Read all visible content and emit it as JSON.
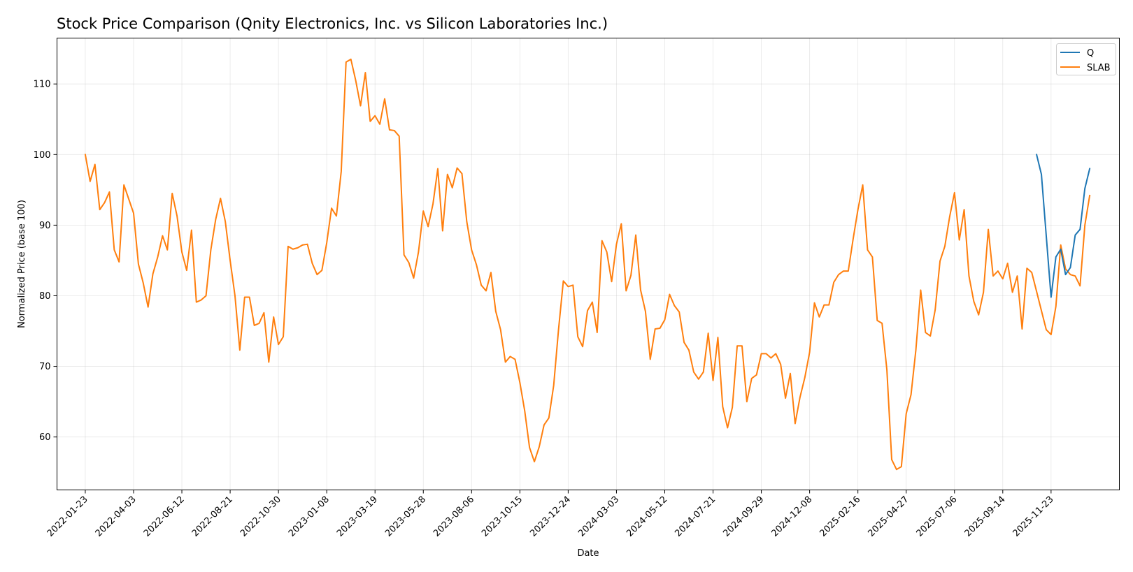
{
  "chart_data": {
    "type": "line",
    "title": "Stock Price Comparison (Qnity Electronics, Inc. vs Silicon Laboratories Inc.)",
    "xlabel": "Date",
    "ylabel": "Normalized Price (base 100)",
    "xlim": [
      "2021-12-13",
      "2026-03-02"
    ],
    "ylim": [
      52.5,
      116.5
    ],
    "yticks": [
      60,
      70,
      80,
      90,
      100,
      110
    ],
    "xticks": [
      "2022-01-23",
      "2022-04-03",
      "2022-06-12",
      "2022-08-21",
      "2022-10-30",
      "2023-01-08",
      "2023-03-19",
      "2023-05-28",
      "2023-08-06",
      "2023-10-15",
      "2023-12-24",
      "2024-03-03",
      "2024-05-12",
      "2024-07-21",
      "2024-09-29",
      "2024-12-08",
      "2025-02-16",
      "2025-04-27",
      "2025-07-06",
      "2025-09-14",
      "2025-11-23"
    ],
    "grid": true,
    "legend_position": "top-right",
    "series": [
      {
        "name": "Q",
        "color": "#1f77b4",
        "points": [
          [
            "2025-11-02",
            100.0
          ],
          [
            "2025-11-09",
            97.2
          ],
          [
            "2025-11-16",
            88.5
          ],
          [
            "2025-11-23",
            79.8
          ],
          [
            "2025-11-30",
            85.5
          ],
          [
            "2025-12-07",
            86.6
          ],
          [
            "2025-12-14",
            83.0
          ],
          [
            "2025-12-21",
            84.0
          ],
          [
            "2025-12-28",
            88.6
          ],
          [
            "2026-01-04",
            89.4
          ],
          [
            "2026-01-11",
            95.2
          ],
          [
            "2026-01-18",
            98.0
          ]
        ]
      },
      {
        "name": "SLAB",
        "color": "#ff7f0e",
        "points": [
          [
            "2022-01-23",
            100.0
          ],
          [
            "2022-01-30",
            96.2
          ],
          [
            "2022-02-06",
            98.6
          ],
          [
            "2022-02-13",
            92.2
          ],
          [
            "2022-02-20",
            93.2
          ],
          [
            "2022-02-27",
            94.7
          ],
          [
            "2022-03-06",
            86.5
          ],
          [
            "2022-03-13",
            84.8
          ],
          [
            "2022-03-20",
            95.7
          ],
          [
            "2022-03-27",
            93.7
          ],
          [
            "2022-04-03",
            91.7
          ],
          [
            "2022-04-10",
            84.5
          ],
          [
            "2022-04-17",
            81.8
          ],
          [
            "2022-04-24",
            78.4
          ],
          [
            "2022-05-01",
            83.1
          ],
          [
            "2022-05-08",
            85.5
          ],
          [
            "2022-05-15",
            88.5
          ],
          [
            "2022-05-22",
            86.5
          ],
          [
            "2022-05-29",
            94.5
          ],
          [
            "2022-06-05",
            91.3
          ],
          [
            "2022-06-12",
            86.2
          ],
          [
            "2022-06-19",
            83.6
          ],
          [
            "2022-06-26",
            89.3
          ],
          [
            "2022-07-03",
            79.1
          ],
          [
            "2022-07-10",
            79.4
          ],
          [
            "2022-07-17",
            80.0
          ],
          [
            "2022-07-24",
            86.5
          ],
          [
            "2022-07-31",
            90.8
          ],
          [
            "2022-08-07",
            93.8
          ],
          [
            "2022-08-14",
            90.5
          ],
          [
            "2022-08-21",
            85.0
          ],
          [
            "2022-08-28",
            80.0
          ],
          [
            "2022-09-04",
            72.3
          ],
          [
            "2022-09-11",
            79.8
          ],
          [
            "2022-09-18",
            79.8
          ],
          [
            "2022-09-25",
            75.8
          ],
          [
            "2022-10-02",
            76.1
          ],
          [
            "2022-10-09",
            77.6
          ],
          [
            "2022-10-16",
            70.6
          ],
          [
            "2022-10-23",
            77.0
          ],
          [
            "2022-10-30",
            73.1
          ],
          [
            "2022-11-06",
            74.2
          ],
          [
            "2022-11-13",
            87.0
          ],
          [
            "2022-11-20",
            86.6
          ],
          [
            "2022-11-27",
            86.8
          ],
          [
            "2022-12-04",
            87.2
          ],
          [
            "2022-12-11",
            87.3
          ],
          [
            "2022-12-18",
            84.6
          ],
          [
            "2022-12-25",
            83.0
          ],
          [
            "2023-01-01",
            83.6
          ],
          [
            "2023-01-08",
            87.5
          ],
          [
            "2023-01-15",
            92.4
          ],
          [
            "2023-01-22",
            91.3
          ],
          [
            "2023-01-29",
            97.6
          ],
          [
            "2023-02-05",
            113.1
          ],
          [
            "2023-02-12",
            113.5
          ],
          [
            "2023-02-19",
            110.5
          ],
          [
            "2023-02-26",
            106.9
          ],
          [
            "2023-03-05",
            111.6
          ],
          [
            "2023-03-12",
            104.7
          ],
          [
            "2023-03-19",
            105.5
          ],
          [
            "2023-03-26",
            104.3
          ],
          [
            "2023-04-02",
            107.9
          ],
          [
            "2023-04-09",
            103.5
          ],
          [
            "2023-04-16",
            103.4
          ],
          [
            "2023-04-23",
            102.6
          ],
          [
            "2023-04-30",
            85.8
          ],
          [
            "2023-05-07",
            84.7
          ],
          [
            "2023-05-14",
            82.5
          ],
          [
            "2023-05-21",
            86.2
          ],
          [
            "2023-05-28",
            92.0
          ],
          [
            "2023-06-04",
            89.8
          ],
          [
            "2023-06-11",
            93.0
          ],
          [
            "2023-06-18",
            98.0
          ],
          [
            "2023-06-25",
            89.2
          ],
          [
            "2023-07-02",
            97.2
          ],
          [
            "2023-07-09",
            95.3
          ],
          [
            "2023-07-16",
            98.1
          ],
          [
            "2023-07-23",
            97.3
          ],
          [
            "2023-07-30",
            90.5
          ],
          [
            "2023-08-06",
            86.5
          ],
          [
            "2023-08-13",
            84.4
          ],
          [
            "2023-08-20",
            81.5
          ],
          [
            "2023-08-27",
            80.7
          ],
          [
            "2023-09-03",
            83.3
          ],
          [
            "2023-09-10",
            77.8
          ],
          [
            "2023-09-17",
            75.2
          ],
          [
            "2023-09-24",
            70.6
          ],
          [
            "2023-10-01",
            71.4
          ],
          [
            "2023-10-08",
            71.0
          ],
          [
            "2023-10-15",
            67.7
          ],
          [
            "2023-10-22",
            63.7
          ],
          [
            "2023-10-29",
            58.5
          ],
          [
            "2023-11-05",
            56.5
          ],
          [
            "2023-11-12",
            58.6
          ],
          [
            "2023-11-19",
            61.7
          ],
          [
            "2023-11-26",
            62.7
          ],
          [
            "2023-12-03",
            67.3
          ],
          [
            "2023-12-10",
            75.2
          ],
          [
            "2023-12-17",
            82.1
          ],
          [
            "2023-12-24",
            81.3
          ],
          [
            "2023-12-31",
            81.5
          ],
          [
            "2024-01-07",
            74.2
          ],
          [
            "2024-01-14",
            72.8
          ],
          [
            "2024-01-21",
            77.9
          ],
          [
            "2024-01-28",
            79.1
          ],
          [
            "2024-02-04",
            74.8
          ],
          [
            "2024-02-11",
            87.8
          ],
          [
            "2024-02-18",
            86.2
          ],
          [
            "2024-02-25",
            82.0
          ],
          [
            "2024-03-03",
            87.3
          ],
          [
            "2024-03-10",
            90.2
          ],
          [
            "2024-03-17",
            80.7
          ],
          [
            "2024-03-24",
            82.9
          ],
          [
            "2024-03-31",
            88.6
          ],
          [
            "2024-04-07",
            80.8
          ],
          [
            "2024-04-14",
            77.8
          ],
          [
            "2024-04-21",
            71.0
          ],
          [
            "2024-04-28",
            75.3
          ],
          [
            "2024-05-05",
            75.4
          ],
          [
            "2024-05-12",
            76.6
          ],
          [
            "2024-05-19",
            80.2
          ],
          [
            "2024-05-26",
            78.6
          ],
          [
            "2024-06-02",
            77.7
          ],
          [
            "2024-06-09",
            73.4
          ],
          [
            "2024-06-16",
            72.3
          ],
          [
            "2024-06-23",
            69.2
          ],
          [
            "2024-06-30",
            68.2
          ],
          [
            "2024-07-07",
            69.2
          ],
          [
            "2024-07-14",
            74.7
          ],
          [
            "2024-07-21",
            68.0
          ],
          [
            "2024-07-28",
            74.1
          ],
          [
            "2024-08-04",
            64.3
          ],
          [
            "2024-08-11",
            61.3
          ],
          [
            "2024-08-18",
            64.2
          ],
          [
            "2024-08-25",
            72.9
          ],
          [
            "2024-09-01",
            72.9
          ],
          [
            "2024-09-08",
            65.0
          ],
          [
            "2024-09-15",
            68.3
          ],
          [
            "2024-09-22",
            68.8
          ],
          [
            "2024-09-29",
            71.8
          ],
          [
            "2024-10-06",
            71.8
          ],
          [
            "2024-10-13",
            71.2
          ],
          [
            "2024-10-20",
            71.8
          ],
          [
            "2024-10-27",
            70.3
          ],
          [
            "2024-11-03",
            65.5
          ],
          [
            "2024-11-10",
            69.0
          ],
          [
            "2024-11-17",
            61.9
          ],
          [
            "2024-11-24",
            65.6
          ],
          [
            "2024-12-01",
            68.4
          ],
          [
            "2024-12-08",
            72.0
          ],
          [
            "2024-12-15",
            79.0
          ],
          [
            "2024-12-22",
            77.0
          ],
          [
            "2024-12-29",
            78.7
          ],
          [
            "2025-01-05",
            78.7
          ],
          [
            "2025-01-12",
            81.9
          ],
          [
            "2025-01-19",
            83.0
          ],
          [
            "2025-01-26",
            83.5
          ],
          [
            "2025-02-02",
            83.5
          ],
          [
            "2025-02-09",
            88.0
          ],
          [
            "2025-02-16",
            92.2
          ],
          [
            "2025-02-23",
            95.7
          ],
          [
            "2025-03-02",
            86.5
          ],
          [
            "2025-03-09",
            85.5
          ],
          [
            "2025-03-16",
            76.5
          ],
          [
            "2025-03-23",
            76.1
          ],
          [
            "2025-03-30",
            69.5
          ],
          [
            "2025-04-06",
            56.8
          ],
          [
            "2025-04-13",
            55.4
          ],
          [
            "2025-04-20",
            55.8
          ],
          [
            "2025-04-27",
            63.3
          ],
          [
            "2025-05-04",
            66.0
          ],
          [
            "2025-05-11",
            72.3
          ],
          [
            "2025-05-18",
            80.8
          ],
          [
            "2025-05-25",
            74.8
          ],
          [
            "2025-06-01",
            74.3
          ],
          [
            "2025-06-08",
            78.0
          ],
          [
            "2025-06-15",
            84.9
          ],
          [
            "2025-06-22",
            87.0
          ],
          [
            "2025-06-29",
            91.2
          ],
          [
            "2025-07-06",
            94.6
          ],
          [
            "2025-07-13",
            87.9
          ],
          [
            "2025-07-20",
            92.2
          ],
          [
            "2025-07-27",
            82.8
          ],
          [
            "2025-08-03",
            79.2
          ],
          [
            "2025-08-10",
            77.3
          ],
          [
            "2025-08-17",
            80.5
          ],
          [
            "2025-08-24",
            89.4
          ],
          [
            "2025-08-31",
            82.8
          ],
          [
            "2025-09-07",
            83.5
          ],
          [
            "2025-09-14",
            82.4
          ],
          [
            "2025-09-21",
            84.6
          ],
          [
            "2025-09-28",
            80.5
          ],
          [
            "2025-10-05",
            82.8
          ],
          [
            "2025-10-12",
            75.3
          ],
          [
            "2025-10-19",
            83.9
          ],
          [
            "2025-10-26",
            83.3
          ],
          [
            "2025-11-02",
            80.6
          ],
          [
            "2025-11-09",
            77.9
          ],
          [
            "2025-11-16",
            75.2
          ],
          [
            "2025-11-23",
            74.5
          ],
          [
            "2025-11-30",
            78.5
          ],
          [
            "2025-12-07",
            87.2
          ],
          [
            "2025-12-14",
            83.8
          ],
          [
            "2025-12-21",
            83.0
          ],
          [
            "2025-12-28",
            82.8
          ],
          [
            "2026-01-04",
            81.4
          ],
          [
            "2026-01-11",
            90.0
          ],
          [
            "2026-01-18",
            94.2
          ]
        ]
      }
    ]
  }
}
